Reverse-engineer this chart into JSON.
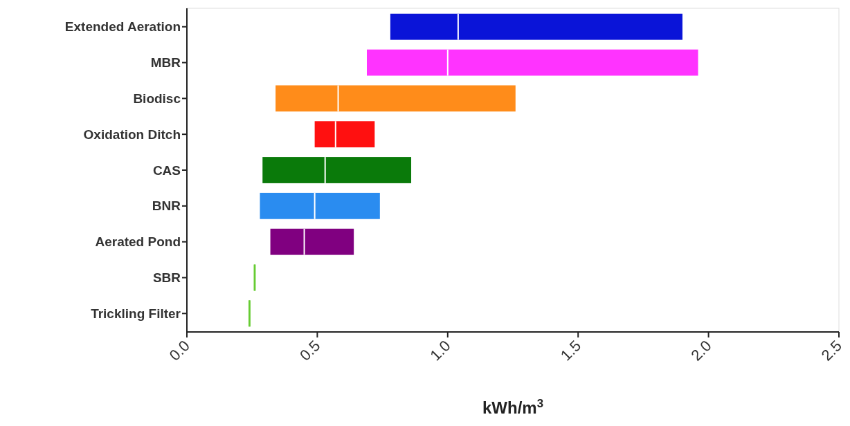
{
  "chart_data": {
    "type": "box",
    "orientation": "horizontal",
    "xlabel": "kWh/m$^{3}$",
    "categories": [
      "Extended Aeration",
      "MBR",
      "Biodisc",
      "Oxidation Ditch",
      "CAS",
      "BNR",
      "Aerated Pond",
      "SBR",
      "Trickling Filter"
    ],
    "boxes": [
      {
        "low": 0.78,
        "q1": 0.78,
        "median": 1.04,
        "q3": 1.9,
        "high": 1.9
      },
      {
        "low": 0.69,
        "q1": 0.69,
        "median": 1.0,
        "q3": 1.96,
        "high": 1.96
      },
      {
        "low": 0.34,
        "q1": 0.34,
        "median": 0.58,
        "q3": 1.26,
        "high": 1.26
      },
      {
        "low": 0.49,
        "q1": 0.49,
        "median": 0.57,
        "q3": 0.72,
        "high": 0.72
      },
      {
        "low": 0.29,
        "q1": 0.29,
        "median": 0.53,
        "q3": 0.86,
        "high": 0.86
      },
      {
        "low": 0.28,
        "q1": 0.28,
        "median": 0.49,
        "q3": 0.74,
        "high": 0.74
      },
      {
        "low": 0.32,
        "q1": 0.32,
        "median": 0.45,
        "q3": 0.64,
        "high": 0.64
      },
      {
        "low": 0.26,
        "q1": 0.26,
        "median": 0.26,
        "q3": 0.26,
        "high": 0.26
      },
      {
        "low": 0.24,
        "q1": 0.24,
        "median": 0.24,
        "q3": 0.24,
        "high": 0.24
      }
    ],
    "colors": [
      "#0a14d8",
      "#ff33ff",
      "#ff8c1a",
      "#ff1010",
      "#0a7a0a",
      "#2a8cf0",
      "#800080",
      "#66cc33",
      "#66cc33"
    ],
    "xlim": [
      0,
      2.5
    ],
    "xticks": [
      {
        "value": 0,
        "label": "0.0"
      },
      {
        "value": 0.5,
        "label": "0.5"
      },
      {
        "value": 1,
        "label": "1.0"
      },
      {
        "value": 1.5,
        "label": "1.5"
      },
      {
        "value": 2,
        "label": "2.0"
      },
      {
        "value": 2.5,
        "label": "2.5"
      }
    ]
  }
}
